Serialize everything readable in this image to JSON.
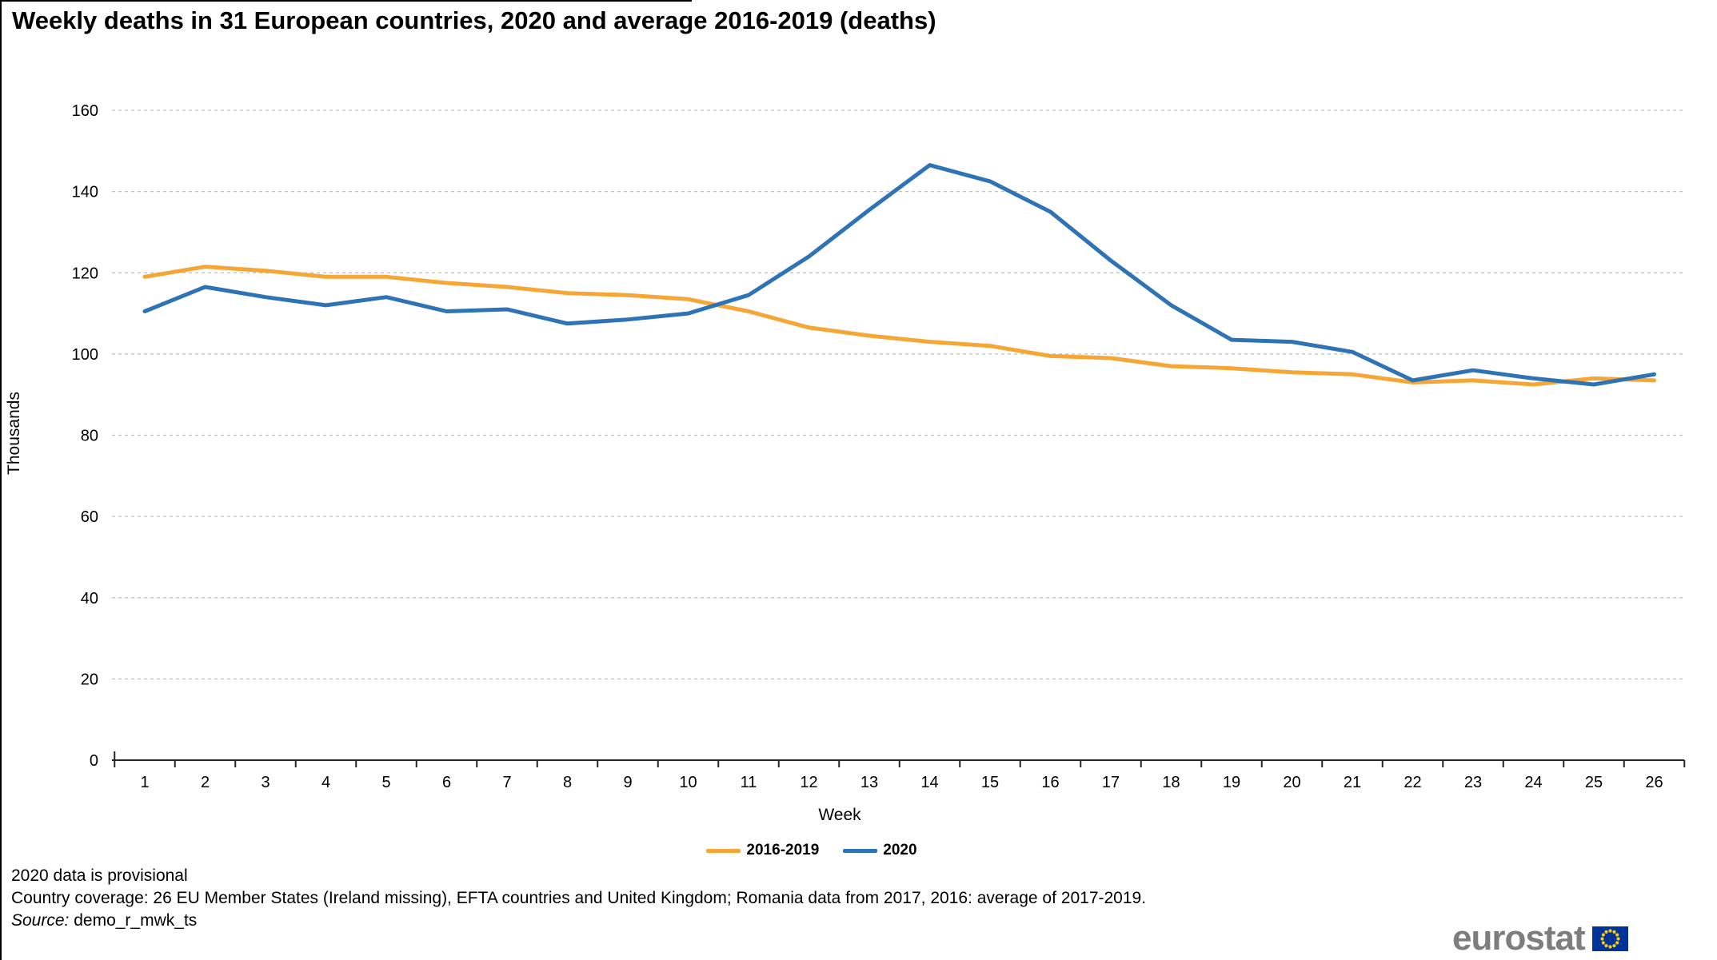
{
  "title": "Weekly deaths in 31 European countries, 2020 and average 2016-2019 (deaths)",
  "chart_data": {
    "type": "line",
    "x": [
      1,
      2,
      3,
      4,
      5,
      6,
      7,
      8,
      9,
      10,
      11,
      12,
      13,
      14,
      15,
      16,
      17,
      18,
      19,
      20,
      21,
      22,
      23,
      24,
      25,
      26
    ],
    "series": [
      {
        "name": "2016-2019",
        "color": "#F6A635",
        "values": [
          119,
          121.5,
          120.5,
          119,
          119,
          117.5,
          116.5,
          115,
          114.5,
          113.5,
          110.5,
          106.5,
          104.5,
          103,
          102,
          99.5,
          99,
          97,
          96.5,
          95.5,
          95,
          93,
          93.5,
          92.5,
          94,
          93.5
        ]
      },
      {
        "name": "2020",
        "color": "#2E73B5",
        "values": [
          110.5,
          116.5,
          114,
          112,
          114,
          110.5,
          111,
          107.5,
          108.5,
          110,
          114.5,
          124,
          135.5,
          146.5,
          142.5,
          135,
          123,
          112,
          103.5,
          103,
          100.5,
          93.5,
          96,
          94,
          92.5,
          95
        ]
      }
    ],
    "xlabel": "Week",
    "ylabel": "Thousands",
    "ylim": [
      0,
      160
    ],
    "ytick_step": 20,
    "grid": "horizontal-dashed",
    "gridline_color": "#BFBFBF",
    "axis_color": "#262626",
    "legend_position": "bottom-center"
  },
  "footnotes": {
    "provisional": "2020 data is provisional",
    "coverage": "Country coverage: 26 EU Member States (Ireland missing), EFTA countries and United Kingdom; Romania data from 2017, 2016: average of 2017-2019.",
    "source_label": "Source:",
    "source_value": "demo_r_mwk_ts"
  },
  "logo": {
    "text": "eurostat",
    "flag_blue": "#003399",
    "flag_star_yellow": "#FFCC00"
  }
}
